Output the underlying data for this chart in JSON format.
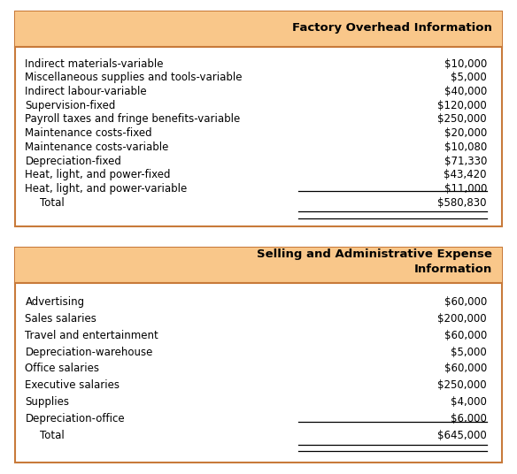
{
  "table1_title": "Factory Overhead Information",
  "table1_rows": [
    [
      "Indirect materials-variable",
      "$10,000"
    ],
    [
      "Miscellaneous supplies and tools-variable",
      "$5,000"
    ],
    [
      "Indirect labour-variable",
      "$40,000"
    ],
    [
      "Supervision-fixed",
      "$120,000"
    ],
    [
      "Payroll taxes and fringe benefits-variable",
      "$250,000"
    ],
    [
      "Maintenance costs-fixed",
      "$20,000"
    ],
    [
      "Maintenance costs-variable",
      "$10,080"
    ],
    [
      "Depreciation-fixed",
      "$71,330"
    ],
    [
      "Heat, light, and power-fixed",
      "$43,420"
    ],
    [
      "Heat, light, and power-variable",
      "$11,000"
    ]
  ],
  "table1_total_label": "Total",
  "table1_total_value": "$580,830",
  "table2_title": "Selling and Administrative Expense\nInformation",
  "table2_rows": [
    [
      "Advertising",
      "$60,000"
    ],
    [
      "Sales salaries",
      "$200,000"
    ],
    [
      "Travel and entertainment",
      "$60,000"
    ],
    [
      "Depreciation-warehouse",
      "$5,000"
    ],
    [
      "Office salaries",
      "$60,000"
    ],
    [
      "Executive salaries",
      "$250,000"
    ],
    [
      "Supplies",
      "$4,000"
    ],
    [
      "Depreciation-office",
      "$6,000"
    ]
  ],
  "table2_total_label": "Total",
  "table2_total_value": "$645,000",
  "header_bg": "#F9C78A",
  "header_text_color": "#000000",
  "body_bg": "#FFFFFF",
  "border_color": "#C87A3A",
  "text_color": "#000000",
  "font_size": 8.5,
  "header_font_size": 9.5
}
